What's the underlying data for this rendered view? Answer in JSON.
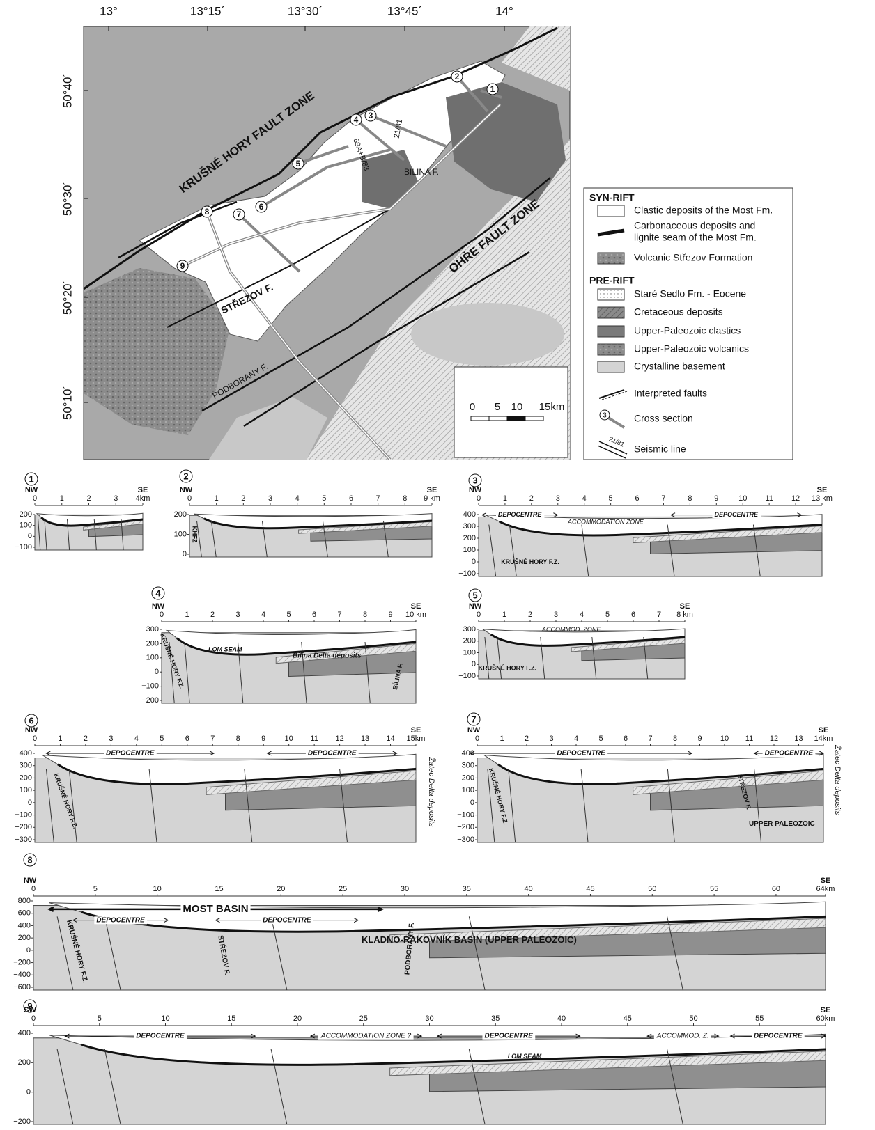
{
  "map": {
    "lon_labels": [
      "13°",
      "13°15´",
      "13°30´",
      "13°45´",
      "14°"
    ],
    "lat_labels": [
      "50°40´",
      "50°30´",
      "50°20´",
      "50°10´"
    ],
    "fault_labels": [
      "KRUŠNÉ HORY FAULT ZONE",
      "OHŘE FAULT ZONE",
      "STŘEZOV F.",
      "PODBORANY F.",
      "BILINA F."
    ],
    "seismic_labels": [
      "21/81",
      "69A+B/83"
    ],
    "section_numbers": [
      "1",
      "2",
      "3",
      "4",
      "5",
      "6",
      "7",
      "8",
      "9"
    ],
    "scale_labels": [
      "0",
      "5",
      "10",
      "15km"
    ]
  },
  "legend": {
    "groups": [
      {
        "title": "SYN-RIFT",
        "entries": [
          {
            "label": [
              "Clastic deposits of the Most Fm."
            ]
          },
          {
            "label": [
              "Carbonaceous deposits and",
              "lignite seam of the Most Fm."
            ]
          },
          {
            "label": [
              "Volcanic Střezov Formation"
            ]
          }
        ]
      },
      {
        "title": "PRE-RIFT",
        "entries": [
          {
            "label": [
              "Staré Sedlo Fm. - Eocene"
            ]
          },
          {
            "label": [
              "Cretaceous deposits"
            ]
          },
          {
            "label": [
              "Upper-Paleozoic clastics"
            ]
          },
          {
            "label": [
              "Upper-Paleozoic volcanics"
            ]
          },
          {
            "label": [
              "Crystalline basement"
            ]
          },
          {
            "label": [
              "Interpreted faults"
            ]
          },
          {
            "label": [
              "Cross section"
            ],
            "swatch_text": "3"
          },
          {
            "label": [
              "Seismic line"
            ],
            "swatch_text": "21/81"
          }
        ]
      }
    ]
  },
  "sections": [
    {
      "number": "1",
      "left": "NW",
      "right": "SE",
      "xticks": [
        "0",
        "1",
        "2",
        "3",
        "4km"
      ],
      "yticks": [
        "200",
        "100",
        "0",
        "−100"
      ],
      "annotations": []
    },
    {
      "number": "2",
      "left": "NW",
      "right": "SE",
      "xticks": [
        "0",
        "1",
        "2",
        "3",
        "4",
        "5",
        "6",
        "7",
        "8",
        "9 km"
      ],
      "yticks": [
        "200",
        "100",
        "0"
      ],
      "annotations": [
        "KHFZ"
      ]
    },
    {
      "number": "3",
      "left": "NW",
      "right": "SE",
      "xticks": [
        "0",
        "1",
        "2",
        "3",
        "4",
        "5",
        "6",
        "7",
        "8",
        "9",
        "10",
        "11",
        "12",
        "13 km"
      ],
      "yticks": [
        "400",
        "300",
        "200",
        "100",
        "0",
        "−100"
      ],
      "annotations": [
        "DEPOCENTRE",
        "ACCOMMODATION ZONE",
        "DEPOCENTRE",
        "KRUŠNÉ HORY F.Z."
      ]
    },
    {
      "number": "4",
      "left": "NW",
      "right": "SE",
      "xticks": [
        "0",
        "1",
        "2",
        "3",
        "4",
        "5",
        "6",
        "7",
        "8",
        "9",
        "10 km"
      ],
      "yticks": [
        "300",
        "200",
        "100",
        "0",
        "−100",
        "−200"
      ],
      "annotations": [
        "LOM SEAM",
        "Bilina Delta deposits",
        "KRUŠNÉ HORY F.Z.",
        "BÍLINA F."
      ]
    },
    {
      "number": "5",
      "left": "NW",
      "right": "SE",
      "xticks": [
        "0",
        "1",
        "2",
        "3",
        "4",
        "5",
        "6",
        "7",
        "8 km"
      ],
      "yticks": [
        "300",
        "200",
        "100",
        "0",
        "−100"
      ],
      "annotations": [
        "ACCOMMOD. ZONE",
        "KRUŠNÉ HORY F.Z."
      ]
    },
    {
      "number": "6",
      "left": "NW",
      "right": "SE",
      "xticks": [
        "0",
        "1",
        "2",
        "3",
        "4",
        "5",
        "6",
        "7",
        "8",
        "9",
        "10",
        "11",
        "12",
        "13",
        "14",
        "15km"
      ],
      "yticks": [
        "400",
        "300",
        "200",
        "100",
        "0",
        "−100",
        "−200",
        "−300"
      ],
      "annotations": [
        "DEPOCENTRE",
        "DEPOCENTRE",
        "KRUŠNÉ HORY F.Z.",
        "Žatec Delta deposits"
      ]
    },
    {
      "number": "7",
      "left": "NW",
      "right": "SE",
      "xticks": [
        "0",
        "1",
        "2",
        "3",
        "4",
        "5",
        "6",
        "7",
        "8",
        "9",
        "10",
        "11",
        "12",
        "13",
        "14km"
      ],
      "yticks": [
        "400",
        "300",
        "200",
        "100",
        "0",
        "−100",
        "−200",
        "−300"
      ],
      "annotations": [
        "DEPOCENTRE",
        "DEPOCENTRE",
        "KRUŠNÉ HORY F.Z.",
        "STŘEZOV F.",
        "UPPER PALEOZOIC",
        "Žatec Delta deposits"
      ]
    },
    {
      "number": "8",
      "left": "NW",
      "right": "SE",
      "xticks": [
        "0",
        "5",
        "10",
        "15",
        "20",
        "25",
        "30",
        "35",
        "40",
        "45",
        "50",
        "55",
        "60",
        "64km"
      ],
      "yticks": [
        "800",
        "600",
        "400",
        "200",
        "0",
        "−200",
        "−400",
        "−600"
      ],
      "annotations": [
        "MOST BASIN",
        "DEPOCENTRE",
        "DEPOCENTRE",
        "KRUŠNÉ HORY F.Z.",
        "STŘEZOV F.",
        "PODBORANY F.",
        "KLADNO-RAKOVNÍK BASIN (UPPER PALEOZOIC)"
      ]
    },
    {
      "number": "9",
      "left": "SW",
      "right": "SE",
      "xticks": [
        "0",
        "5",
        "10",
        "15",
        "20",
        "25",
        "30",
        "35",
        "40",
        "45",
        "50",
        "55",
        "60km"
      ],
      "yticks": [
        "400",
        "200",
        "0",
        "−200"
      ],
      "annotations": [
        "DEPOCENTRE",
        "ACCOMMODATION ZONE ?",
        "DEPOCENTRE",
        "ACCOMMOD. Z.",
        "DEPOCENTRE",
        "LOM SEAM"
      ]
    }
  ]
}
